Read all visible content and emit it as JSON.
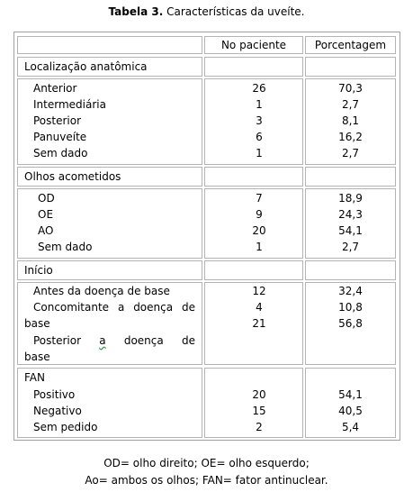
{
  "title": {
    "bold": "Tabela 3.",
    "rest": " Características da uveíte."
  },
  "headers": {
    "col1": "No paciente",
    "col2": "Porcentagem"
  },
  "sections": {
    "loc": {
      "title": "Localização anatômica",
      "rows": [
        {
          "label": "Anterior",
          "n": "26",
          "p": "70,3"
        },
        {
          "label": "Intermediária",
          "n": "1",
          "p": "2,7"
        },
        {
          "label": "Posterior",
          "n": "3",
          "p": "8,1"
        },
        {
          "label": "Panuveíte",
          "n": "6",
          "p": "16,2"
        },
        {
          "label": "Sem dado",
          "n": "1",
          "p": "2,7"
        }
      ]
    },
    "olhos": {
      "title": "Olhos acometidos",
      "rows": [
        {
          "label": "OD",
          "n": "7",
          "p": "18,9"
        },
        {
          "label": "OE",
          "n": "9",
          "p": "24,3"
        },
        {
          "label": "AO",
          "n": "20",
          "p": "54,1"
        },
        {
          "label": "Sem dado",
          "n": "1",
          "p": "2,7"
        }
      ]
    },
    "inicio": {
      "title": "Início",
      "antes": "Antes da doença de base",
      "concomitante_words": [
        "Concomitante",
        "a",
        "doença",
        "de"
      ],
      "concomitante_end": "base",
      "posterior_words": [
        "Posterior",
        "a",
        "doença",
        "de"
      ],
      "posterior_end": "base",
      "n": [
        "12",
        "4",
        "21"
      ],
      "p": [
        "32,4",
        "10,8",
        "56,8"
      ]
    },
    "fan": {
      "title": "FAN",
      "rows": [
        {
          "label": "Positivo",
          "n": "20",
          "p": "54,1"
        },
        {
          "label": "Negativo",
          "n": "15",
          "p": "40,5"
        },
        {
          "label": "Sem pedido",
          "n": "2",
          "p": "5,4"
        }
      ]
    }
  },
  "footer": {
    "line1": "OD= olho direito; OE= olho esquerdo;",
    "line2": "Ao= ambos os olhos; FAN= fator antinuclear."
  }
}
